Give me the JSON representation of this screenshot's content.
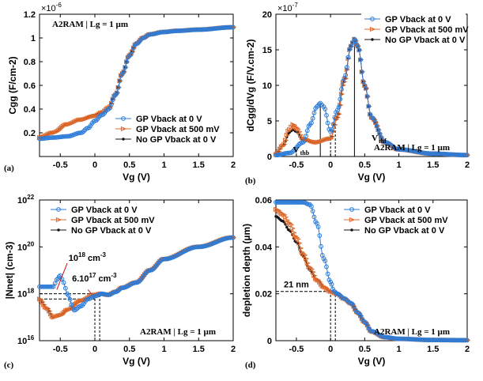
{
  "colors": {
    "blue": "#2b7bd8",
    "orange": "#e06a2c",
    "black": "#111111"
  },
  "legend_labels": [
    "GP Vback at 0 V",
    "GP Vback at 500 mV",
    "No GP Vback at 0 V"
  ],
  "chart_data": [
    {
      "type": "line",
      "panel_label": "(a)",
      "xlabel": "Vg (V)",
      "ylabel": "Cgg   (F/cm-2)",
      "y_multiplier": "×10",
      "y_multiplier_exp": "-6",
      "annotation": "A2RAM | Lg = 1 µm",
      "xlim": [
        -0.8,
        2
      ],
      "ylim": [
        0,
        1.2
      ],
      "x_ticks": [
        -0.5,
        0,
        0.5,
        1,
        1.5,
        2
      ],
      "x_tick_labels": [
        "-0.5",
        "0",
        "0.5",
        "1",
        "1.5",
        "2"
      ],
      "y_ticks": [
        0.2,
        0.4,
        0.6,
        0.8,
        1.0,
        1.2
      ],
      "y_tick_labels": [
        "0.2",
        "0.4",
        "0.6",
        "0.8",
        "1",
        "1.2"
      ],
      "legend_position": "bottom-right",
      "series": [
        {
          "name": "GP Vback at 0 V",
          "color": "blue",
          "marker": "circle",
          "x": [
            -0.8,
            -0.6,
            -0.4,
            -0.2,
            -0.1,
            0,
            0.1,
            0.2,
            0.3,
            0.4,
            0.5,
            0.6,
            0.7,
            0.8,
            1.0,
            1.2,
            1.5,
            2.0
          ],
          "y": [
            0.15,
            0.16,
            0.17,
            0.2,
            0.24,
            0.3,
            0.35,
            0.4,
            0.52,
            0.7,
            0.85,
            0.95,
            1.0,
            1.03,
            1.05,
            1.06,
            1.07,
            1.09
          ]
        },
        {
          "name": "GP Vback at 500 mV",
          "color": "orange",
          "marker": "triangle",
          "x": [
            -0.8,
            -0.6,
            -0.4,
            -0.2,
            0,
            0.1,
            0.2,
            0.3,
            0.4,
            0.5,
            0.6,
            0.7,
            0.8,
            1.0,
            1.2,
            1.5,
            2.0
          ],
          "y": [
            0.16,
            0.2,
            0.27,
            0.31,
            0.34,
            0.37,
            0.41,
            0.52,
            0.7,
            0.85,
            0.95,
            1.0,
            1.03,
            1.05,
            1.06,
            1.07,
            1.09
          ]
        },
        {
          "name": "No GP Vback at 0 V",
          "color": "black",
          "marker": "dot",
          "x": [
            -0.8,
            -0.6,
            -0.4,
            -0.2,
            0,
            0.1,
            0.2,
            0.3,
            0.4,
            0.5,
            0.6,
            0.7,
            0.8,
            1.0,
            1.2,
            1.5,
            2.0
          ],
          "y": [
            0.16,
            0.2,
            0.27,
            0.31,
            0.35,
            0.37,
            0.41,
            0.52,
            0.7,
            0.85,
            0.95,
            1.0,
            1.03,
            1.05,
            1.06,
            1.07,
            1.09
          ]
        }
      ]
    },
    {
      "type": "line",
      "panel_label": "(b)",
      "xlabel": "Vg (V)",
      "ylabel": "dCgg/dVg  (F/V.cm-2)",
      "y_multiplier": "×10",
      "y_multiplier_exp": "-7",
      "annotation": "A2RAM | Lg = 1 µm",
      "xlim": [
        -0.8,
        2
      ],
      "ylim": [
        0,
        20
      ],
      "x_ticks": [
        -0.5,
        0,
        0.5,
        1,
        1.5,
        2
      ],
      "x_tick_labels": [
        "-0.5",
        "0",
        "0.5",
        "1",
        "1.5",
        "2"
      ],
      "y_ticks": [
        0,
        5,
        10,
        15,
        20
      ],
      "y_tick_labels": [
        "0",
        "5",
        "10",
        "15",
        "20"
      ],
      "legend_position": "top-right",
      "vthb_label": "V",
      "vthb_sub": "thb",
      "vthf_label": "V",
      "vthf_sub": "thf",
      "vlines": [
        -0.15,
        0.0,
        0.07,
        0.35
      ],
      "series": [
        {
          "name": "GP Vback at 0 V",
          "color": "blue",
          "marker": "circle",
          "x": [
            -0.8,
            -0.6,
            -0.4,
            -0.3,
            -0.2,
            -0.15,
            -0.1,
            0,
            0.1,
            0.2,
            0.3,
            0.35,
            0.4,
            0.5,
            0.6,
            0.8,
            1.0,
            1.5,
            2.0
          ],
          "y": [
            0.2,
            0.5,
            2.0,
            4.5,
            7.0,
            7.5,
            7.0,
            3.5,
            6.5,
            11,
            15.5,
            16.5,
            15.5,
            10,
            5.5,
            2.0,
            1.0,
            0.4,
            0.2
          ]
        },
        {
          "name": "GP Vback at 500 mV",
          "color": "orange",
          "marker": "triangle",
          "x": [
            -0.8,
            -0.7,
            -0.6,
            -0.55,
            -0.5,
            -0.4,
            -0.2,
            0,
            0.1,
            0.2,
            0.3,
            0.35,
            0.4,
            0.5,
            0.6,
            0.8,
            1.0,
            1.5,
            2.0
          ],
          "y": [
            0.3,
            1.5,
            3.8,
            4.5,
            4.0,
            2.5,
            2.0,
            2.5,
            5.5,
            10.5,
            15.5,
            16.5,
            15.5,
            10,
            5.5,
            2.0,
            1.0,
            0.4,
            0.2
          ]
        },
        {
          "name": "No GP Vback at 0 V",
          "color": "black",
          "marker": "dot",
          "x": [
            -0.8,
            -0.7,
            -0.6,
            -0.55,
            -0.5,
            -0.4,
            -0.2,
            0,
            0.1,
            0.2,
            0.3,
            0.35,
            0.4,
            0.5,
            0.6,
            0.8,
            1.0,
            1.5,
            2.0
          ],
          "y": [
            0.3,
            1.5,
            3.4,
            3.8,
            3.5,
            2.3,
            2.0,
            2.5,
            5.5,
            10.5,
            15.5,
            16.5,
            15.5,
            10,
            5.5,
            2.0,
            1.0,
            0.4,
            0.2
          ]
        }
      ]
    },
    {
      "type": "line",
      "panel_label": "(c)",
      "xlabel": "Vg (V)",
      "ylabel": "|Nnet| (cm-3)",
      "yscale": "log",
      "annotation": "A2RAM | Lg = 1 µm",
      "annotation_1e18": "10",
      "annotation_1e18_exp": "18",
      "annotation_1e18_unit": " cm",
      "annotation_1e18_unit_exp": "-3",
      "annotation_6e17": "6.10",
      "annotation_6e17_exp": "17",
      "annotation_6e17_unit": " cm",
      "annotation_6e17_unit_exp": "-3",
      "xlim": [
        -0.8,
        2
      ],
      "ylim": [
        1e+16,
        1e+22
      ],
      "x_ticks": [
        -0.5,
        0,
        0.5,
        1,
        1.5,
        2
      ],
      "x_tick_labels": [
        "-0.5",
        "0",
        "0.5",
        "1",
        "1.5",
        "2"
      ],
      "y_ticks": [
        1e+16,
        1e+18,
        1e+20,
        1e+22
      ],
      "y_tick_base": "10",
      "y_tick_exps": [
        "16",
        "18",
        "20",
        "22"
      ],
      "legend_position": "top-left",
      "vlines": [
        0.0,
        0.07
      ],
      "series": [
        {
          "name": "GP Vback at 0 V",
          "color": "blue",
          "marker": "circle",
          "x": [
            -0.8,
            -0.6,
            -0.55,
            -0.5,
            -0.45,
            -0.4,
            -0.3,
            -0.2,
            -0.1,
            0,
            0.1,
            0.2,
            0.3,
            0.4,
            0.6,
            0.8,
            1.0,
            1.5,
            2.0
          ],
          "y": [
            2e+18,
            2e+18,
            4e+18,
            6e+18,
            3e+18,
            1e+18,
            2e+17,
            3e+17,
            6e+17,
            8e+17,
            1e+18,
            9e+17,
            1.2e+18,
            1.8e+18,
            3e+18,
            1e+19,
            3e+19,
            1e+20,
            2.5e+20
          ]
        },
        {
          "name": "GP Vback at 500 mV",
          "color": "orange",
          "marker": "triangle",
          "x": [
            -0.8,
            -0.7,
            -0.6,
            -0.5,
            -0.4,
            -0.2,
            0,
            0.1,
            0.2,
            0.3,
            0.4,
            0.6,
            0.8,
            1.0,
            1.5,
            2.0
          ],
          "y": [
            6e+17,
            2.5e+17,
            1e+17,
            1.2e+17,
            2e+17,
            5e+17,
            9e+17,
            1e+18,
            9e+17,
            1.2e+18,
            1.8e+18,
            3e+18,
            1e+19,
            3e+19,
            1e+20,
            2.5e+20
          ]
        },
        {
          "name": "No GP Vback at 0 V",
          "color": "black",
          "marker": "dot",
          "x": [
            -0.8,
            -0.7,
            -0.6,
            -0.5,
            -0.4,
            -0.2,
            0,
            0.1,
            0.2,
            0.3,
            0.4,
            0.6,
            0.8,
            1.0,
            1.5,
            2.0
          ],
          "y": [
            6e+17,
            2.5e+17,
            1e+17,
            1.2e+17,
            2e+17,
            5e+17,
            9e+17,
            1e+18,
            9e+17,
            1.2e+18,
            1.8e+18,
            3e+18,
            1e+19,
            3e+19,
            1e+20,
            2.5e+20
          ]
        }
      ]
    },
    {
      "type": "line",
      "panel_label": "(d)",
      "xlabel": "Vg (V)",
      "ylabel": "depletion depth (µm)",
      "annotation": "A2RAM | Lg = 1 µm",
      "annotation_depth": "21 nm",
      "xlim": [
        -0.8,
        2
      ],
      "ylim": [
        0,
        0.06
      ],
      "x_ticks": [
        -0.5,
        0,
        0.5,
        1,
        1.5,
        2
      ],
      "x_tick_labels": [
        "-0.5",
        "0",
        "0.5",
        "1",
        "1.5",
        "2"
      ],
      "y_ticks": [
        0,
        0.02,
        0.04,
        0.06
      ],
      "y_tick_labels": [
        "0",
        "0.02",
        "0.04",
        "0.06"
      ],
      "legend_position": "top-right",
      "hline": 0.021,
      "vlines": [
        0.0,
        0.07
      ],
      "series": [
        {
          "name": "GP Vback at 0 V",
          "color": "blue",
          "marker": "circle",
          "x": [
            -0.8,
            -0.6,
            -0.4,
            -0.3,
            -0.2,
            -0.1,
            0,
            0.05,
            0.1,
            0.2,
            0.3,
            0.4,
            0.5,
            0.6,
            0.8,
            1.0,
            1.5,
            2.0
          ],
          "y": [
            0.059,
            0.059,
            0.059,
            0.058,
            0.05,
            0.035,
            0.025,
            0.021,
            0.02,
            0.018,
            0.016,
            0.012,
            0.008,
            0.004,
            0.0015,
            0.0008,
            0.0003,
            0.0002
          ]
        },
        {
          "name": "GP Vback at 500 mV",
          "color": "orange",
          "marker": "triangle",
          "x": [
            -0.8,
            -0.7,
            -0.6,
            -0.5,
            -0.4,
            -0.3,
            -0.2,
            -0.1,
            0,
            0.1,
            0.2,
            0.3,
            0.4,
            0.5,
            0.6,
            0.8,
            1.0,
            1.5,
            2.0
          ],
          "y": [
            0.056,
            0.054,
            0.05,
            0.044,
            0.037,
            0.031,
            0.026,
            0.023,
            0.021,
            0.02,
            0.018,
            0.016,
            0.012,
            0.008,
            0.004,
            0.0015,
            0.0008,
            0.0003,
            0.0002
          ]
        },
        {
          "name": "No GP Vback at 0 V",
          "color": "black",
          "marker": "dot",
          "x": [
            -0.8,
            -0.7,
            -0.6,
            -0.5,
            -0.4,
            -0.3,
            -0.2,
            -0.1,
            0,
            0.1,
            0.2,
            0.3,
            0.4,
            0.5,
            0.6,
            0.8,
            1.0,
            1.5,
            2.0
          ],
          "y": [
            0.053,
            0.051,
            0.047,
            0.042,
            0.036,
            0.03,
            0.026,
            0.023,
            0.021,
            0.02,
            0.018,
            0.016,
            0.012,
            0.008,
            0.004,
            0.0015,
            0.0008,
            0.0003,
            0.0002
          ]
        }
      ]
    }
  ]
}
